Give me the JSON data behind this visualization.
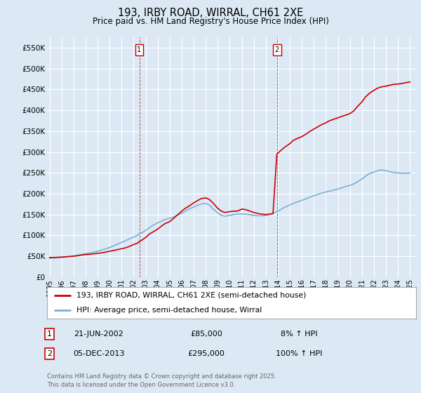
{
  "title": "193, IRBY ROAD, WIRRAL, CH61 2XE",
  "subtitle": "Price paid vs. HM Land Registry's House Price Index (HPI)",
  "bg_color": "#dce9f5",
  "ylim": [
    0,
    575000
  ],
  "yticks": [
    0,
    50000,
    100000,
    150000,
    200000,
    250000,
    300000,
    350000,
    400000,
    450000,
    500000,
    550000
  ],
  "ytick_labels": [
    "£0",
    "£50K",
    "£100K",
    "£150K",
    "£200K",
    "£250K",
    "£300K",
    "£350K",
    "£400K",
    "£450K",
    "£500K",
    "£550K"
  ],
  "xlim_start": 1994.8,
  "xlim_end": 2025.5,
  "sale1_x": 2002.47,
  "sale1_y": 85000,
  "sale2_x": 2013.92,
  "sale2_y": 295000,
  "red_line_color": "#cc0000",
  "blue_line_color": "#7ab0d4",
  "legend_label_red": "193, IRBY ROAD, WIRRAL, CH61 2XE (semi-detached house)",
  "legend_label_blue": "HPI: Average price, semi-detached house, Wirral",
  "box1_date": "21-JUN-2002",
  "box1_price": "£85,000",
  "box1_hpi": "8% ↑ HPI",
  "box2_date": "05-DEC-2013",
  "box2_price": "£295,000",
  "box2_hpi": "100% ↑ HPI",
  "footer": "Contains HM Land Registry data © Crown copyright and database right 2025.\nThis data is licensed under the Open Government Licence v3.0.",
  "red_x": [
    1995.0,
    1995.3,
    1995.6,
    1996.0,
    1996.3,
    1996.6,
    1997.0,
    1997.3,
    1997.6,
    1998.0,
    1998.3,
    1998.6,
    1999.0,
    1999.3,
    1999.6,
    2000.0,
    2000.3,
    2000.6,
    2001.0,
    2001.3,
    2001.6,
    2002.0,
    2002.3,
    2002.47,
    2002.6,
    2003.0,
    2003.3,
    2003.6,
    2004.0,
    2004.3,
    2004.6,
    2005.0,
    2005.3,
    2005.6,
    2006.0,
    2006.3,
    2006.6,
    2007.0,
    2007.3,
    2007.6,
    2008.0,
    2008.3,
    2008.6,
    2009.0,
    2009.3,
    2009.6,
    2010.0,
    2010.3,
    2010.6,
    2011.0,
    2011.3,
    2011.6,
    2012.0,
    2012.3,
    2012.6,
    2013.0,
    2013.3,
    2013.6,
    2013.92,
    2014.0,
    2014.3,
    2014.6,
    2015.0,
    2015.3,
    2015.6,
    2016.0,
    2016.3,
    2016.6,
    2017.0,
    2017.3,
    2017.6,
    2018.0,
    2018.3,
    2018.6,
    2019.0,
    2019.3,
    2019.6,
    2020.0,
    2020.3,
    2020.6,
    2021.0,
    2021.3,
    2021.6,
    2022.0,
    2022.3,
    2022.6,
    2023.0,
    2023.3,
    2023.6,
    2024.0,
    2024.3,
    2024.6,
    2025.0
  ],
  "red_y": [
    47000,
    47200,
    47500,
    48000,
    48500,
    49200,
    50000,
    51000,
    52500,
    54000,
    54500,
    55500,
    57000,
    58000,
    59500,
    62000,
    63500,
    65500,
    68000,
    70000,
    73000,
    78000,
    81000,
    85000,
    87000,
    95000,
    103000,
    108000,
    115000,
    122000,
    128000,
    133000,
    140000,
    148000,
    158000,
    165000,
    170000,
    178000,
    183000,
    188000,
    190000,
    186000,
    178000,
    165000,
    158000,
    155000,
    157000,
    158000,
    158000,
    163000,
    162000,
    159000,
    155000,
    153000,
    151000,
    150000,
    151000,
    152000,
    295000,
    297000,
    305000,
    312000,
    320000,
    328000,
    332000,
    337000,
    342000,
    348000,
    355000,
    360000,
    365000,
    370000,
    375000,
    378000,
    382000,
    385000,
    388000,
    392000,
    398000,
    408000,
    420000,
    432000,
    440000,
    448000,
    453000,
    456000,
    458000,
    460000,
    462000,
    463000,
    464000,
    466000,
    468000
  ],
  "blue_x": [
    1995.0,
    1995.3,
    1995.6,
    1996.0,
    1996.3,
    1996.6,
    1997.0,
    1997.3,
    1997.6,
    1998.0,
    1998.3,
    1998.6,
    1999.0,
    1999.3,
    1999.6,
    2000.0,
    2000.3,
    2000.6,
    2001.0,
    2001.3,
    2001.6,
    2002.0,
    2002.3,
    2002.6,
    2003.0,
    2003.3,
    2003.6,
    2004.0,
    2004.3,
    2004.6,
    2005.0,
    2005.3,
    2005.6,
    2006.0,
    2006.3,
    2006.6,
    2007.0,
    2007.3,
    2007.6,
    2008.0,
    2008.3,
    2008.6,
    2009.0,
    2009.3,
    2009.6,
    2010.0,
    2010.3,
    2010.6,
    2011.0,
    2011.3,
    2011.6,
    2012.0,
    2012.3,
    2012.6,
    2013.0,
    2013.3,
    2013.6,
    2014.0,
    2014.3,
    2014.6,
    2015.0,
    2015.3,
    2015.6,
    2016.0,
    2016.3,
    2016.6,
    2017.0,
    2017.3,
    2017.6,
    2018.0,
    2018.3,
    2018.6,
    2019.0,
    2019.3,
    2019.6,
    2020.0,
    2020.3,
    2020.6,
    2021.0,
    2021.3,
    2021.6,
    2022.0,
    2022.3,
    2022.6,
    2023.0,
    2023.3,
    2023.6,
    2024.0,
    2024.3,
    2024.6,
    2025.0
  ],
  "blue_y": [
    45000,
    45500,
    46000,
    47000,
    48000,
    49500,
    51000,
    52500,
    54000,
    56000,
    57500,
    59500,
    62000,
    64500,
    67000,
    71000,
    74500,
    78500,
    83000,
    87000,
    91000,
    96000,
    100000,
    105000,
    112000,
    118000,
    124000,
    130000,
    134000,
    138000,
    141000,
    144000,
    148000,
    153000,
    158000,
    163000,
    168000,
    172000,
    175000,
    177000,
    173000,
    164000,
    154000,
    148000,
    146000,
    148000,
    150000,
    151000,
    151000,
    151000,
    150000,
    148000,
    147000,
    147000,
    148000,
    150000,
    153000,
    158000,
    163000,
    168000,
    173000,
    177000,
    180000,
    184000,
    187000,
    191000,
    195000,
    198000,
    201000,
    204000,
    206000,
    208000,
    211000,
    214000,
    217000,
    220000,
    223000,
    228000,
    235000,
    242000,
    248000,
    252000,
    255000,
    257000,
    255000,
    253000,
    251000,
    250000,
    249000,
    249000,
    250000
  ]
}
